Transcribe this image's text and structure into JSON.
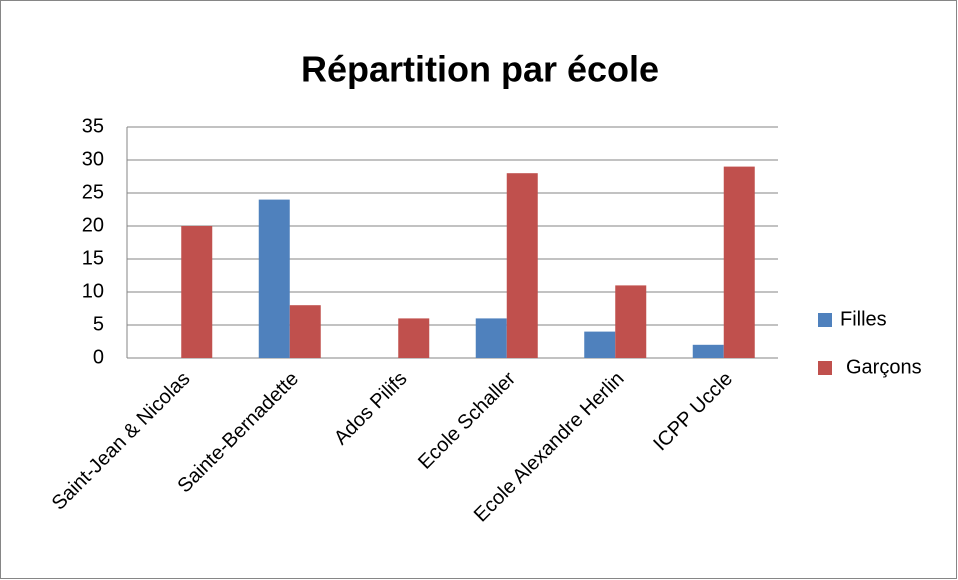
{
  "chart_data": {
    "type": "bar",
    "title": "Répartition par école",
    "categories": [
      "Saint-Jean & Nicolas",
      "Sainte-Bernadette",
      "Ados Pilifs",
      "Ecole Schaller",
      "Ecole Alexandre Herlin",
      "ICPP Uccle"
    ],
    "series": [
      {
        "name": "Filles",
        "color": "#4f81bd",
        "values": [
          0,
          24,
          0,
          6,
          4,
          2
        ]
      },
      {
        "name": "Garçons",
        "color": "#c0504d",
        "values": [
          20,
          8,
          6,
          28,
          11,
          29
        ]
      }
    ],
    "ylim": [
      0,
      35
    ],
    "yticks": [
      0,
      5,
      10,
      15,
      20,
      25,
      30,
      35
    ],
    "grid": true,
    "legend": "right"
  }
}
